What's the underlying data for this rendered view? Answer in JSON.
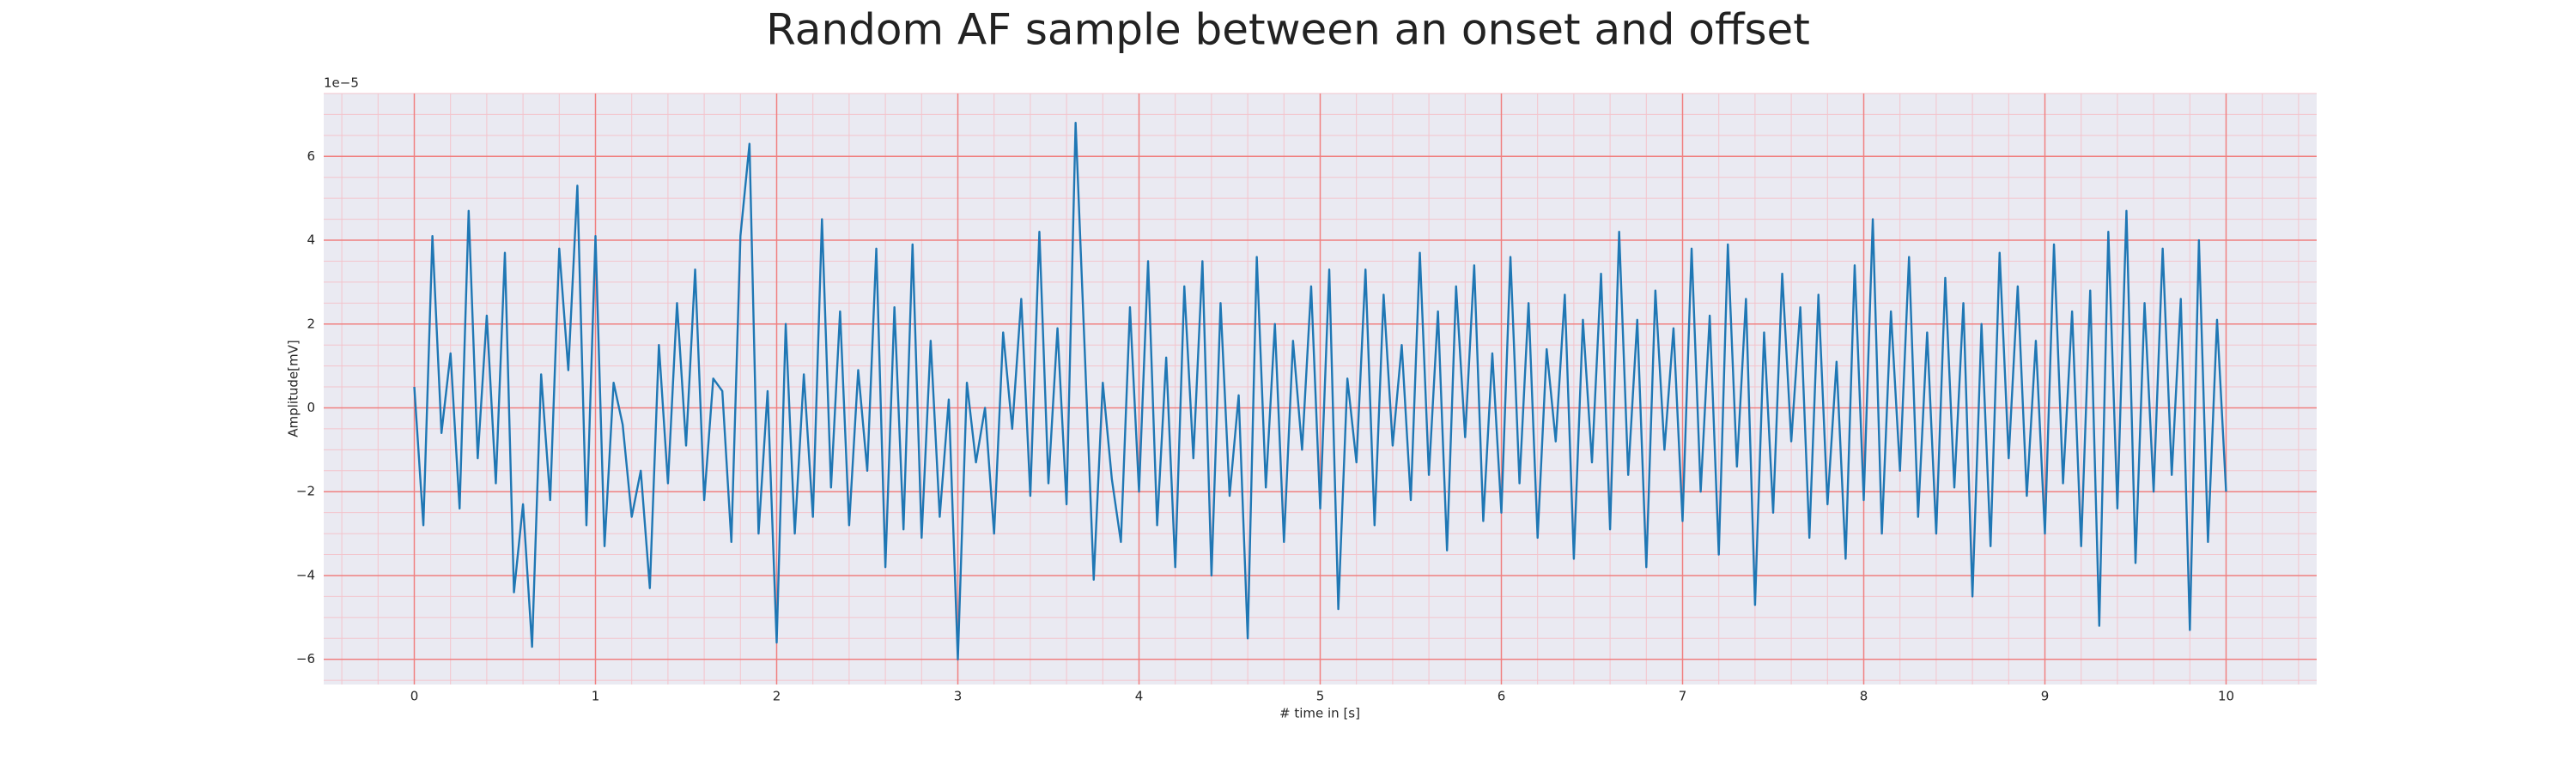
{
  "chart_data": {
    "type": "line",
    "title": "Random AF sample between an onset and offset",
    "xlabel": "# time in [s]",
    "ylabel": "Amplitude[mV]",
    "y_offset_label": "1e−5",
    "xlim": [
      -0.5,
      10.5
    ],
    "ylim": [
      -6.6,
      7.5
    ],
    "xticks": [
      0,
      1,
      2,
      3,
      4,
      5,
      6,
      7,
      8,
      9,
      10
    ],
    "yticks": [
      {
        "value": -6,
        "label": "−6"
      },
      {
        "value": -4,
        "label": "−4"
      },
      {
        "value": -2,
        "label": "−2"
      },
      0,
      2,
      4,
      6
    ],
    "grid": true,
    "grid_color": "#f08080",
    "minor_grid_color": "#f3c4cc",
    "x_minor_divisions": 5,
    "y_minor_divisions": 4,
    "background": "#eaeaf2",
    "series": [
      {
        "color": "#1f77b4",
        "x": [
          0,
          0.05,
          0.1,
          0.15,
          0.2,
          0.25,
          0.3,
          0.35,
          0.4,
          0.45,
          0.5,
          0.55,
          0.6,
          0.65,
          0.7,
          0.75,
          0.8,
          0.85,
          0.9,
          0.95,
          1,
          1.05,
          1.1,
          1.15,
          1.2,
          1.25,
          1.3,
          1.35,
          1.4,
          1.45,
          1.5,
          1.55,
          1.6,
          1.65,
          1.7,
          1.75,
          1.8,
          1.85,
          1.9,
          1.95,
          2,
          2.05,
          2.1,
          2.15,
          2.2,
          2.25,
          2.3,
          2.35,
          2.4,
          2.45,
          2.5,
          2.55,
          2.6,
          2.65,
          2.7,
          2.75,
          2.8,
          2.85,
          2.9,
          2.95,
          3,
          3.05,
          3.1,
          3.15,
          3.2,
          3.25,
          3.3,
          3.35,
          3.4,
          3.45,
          3.5,
          3.55,
          3.6,
          3.65,
          3.7,
          3.75,
          3.8,
          3.85,
          3.9,
          3.95,
          4,
          4.05,
          4.1,
          4.15,
          4.2,
          4.25,
          4.3,
          4.35,
          4.4,
          4.45,
          4.5,
          4.55,
          4.6,
          4.65,
          4.7,
          4.75,
          4.8,
          4.85,
          4.9,
          4.95,
          5,
          5.05,
          5.1,
          5.15,
          5.2,
          5.25,
          5.3,
          5.35,
          5.4,
          5.45,
          5.5,
          5.55,
          5.6,
          5.65,
          5.7,
          5.75,
          5.8,
          5.85,
          5.9,
          5.95,
          6,
          6.05,
          6.1,
          6.15,
          6.2,
          6.25,
          6.3,
          6.35,
          6.4,
          6.45,
          6.5,
          6.55,
          6.6,
          6.65,
          6.7,
          6.75,
          6.8,
          6.85,
          6.9,
          6.95,
          7,
          7.05,
          7.1,
          7.15,
          7.2,
          7.25,
          7.3,
          7.35,
          7.4,
          7.45,
          7.5,
          7.55,
          7.6,
          7.65,
          7.7,
          7.75,
          7.8,
          7.85,
          7.9,
          7.95,
          8,
          8.05,
          8.1,
          8.15,
          8.2,
          8.25,
          8.3,
          8.35,
          8.4,
          8.45,
          8.5,
          8.55,
          8.6,
          8.65,
          8.7,
          8.75,
          8.8,
          8.85,
          8.9,
          8.95,
          9,
          9.05,
          9.1,
          9.15,
          9.2,
          9.25,
          9.3,
          9.35,
          9.4,
          9.45,
          9.5,
          9.55,
          9.6,
          9.65,
          9.7,
          9.75,
          9.8,
          9.85,
          9.9,
          9.95,
          10
        ],
        "values": [
          0.5,
          -2.8,
          4.1,
          -0.6,
          1.3,
          -2.4,
          4.7,
          -1.2,
          2.2,
          -1.8,
          3.7,
          -4.4,
          -2.3,
          -5.7,
          0.8,
          -2.2,
          3.8,
          0.9,
          5.3,
          -2.8,
          4.1,
          -3.3,
          0.6,
          -0.4,
          -2.6,
          -1.5,
          -4.3,
          1.5,
          -1.8,
          2.5,
          -0.9,
          3.3,
          -2.2,
          0.7,
          0.4,
          -3.2,
          4.1,
          6.3,
          -3.0,
          0.4,
          -5.6,
          2.0,
          -3.0,
          0.8,
          -2.6,
          4.5,
          -1.9,
          2.3,
          -2.8,
          0.9,
          -1.5,
          3.8,
          -3.8,
          2.4,
          -2.9,
          3.9,
          -3.1,
          1.6,
          -2.6,
          0.2,
          -6.0,
          0.6,
          -1.3,
          0.0,
          -3.0,
          1.8,
          -0.5,
          2.6,
          -2.1,
          4.2,
          -1.8,
          1.9,
          -2.3,
          6.8,
          1.4,
          -4.1,
          0.6,
          -1.7,
          -3.2,
          2.4,
          -2.0,
          3.5,
          -2.8,
          1.2,
          -3.8,
          2.9,
          -1.2,
          3.5,
          -4.0,
          2.5,
          -2.1,
          0.3,
          -5.5,
          3.6,
          -1.9,
          2.0,
          -3.2,
          1.6,
          -1.0,
          2.9,
          -2.4,
          3.3,
          -4.8,
          0.7,
          -1.3,
          3.3,
          -2.8,
          2.7,
          -0.9,
          1.5,
          -2.2,
          3.7,
          -1.6,
          2.3,
          -3.4,
          2.9,
          -0.7,
          3.4,
          -2.7,
          1.3,
          -2.5,
          3.6,
          -1.8,
          2.5,
          -3.1,
          1.4,
          -0.8,
          2.7,
          -3.6,
          2.1,
          -1.3,
          3.2,
          -2.9,
          4.2,
          -1.6,
          2.1,
          -3.8,
          2.8,
          -1.0,
          1.9,
          -2.7,
          3.8,
          -2.0,
          2.2,
          -3.5,
          3.9,
          -1.4,
          2.6,
          -4.7,
          1.8,
          -2.5,
          3.2,
          -0.8,
          2.4,
          -3.1,
          2.7,
          -2.3,
          1.1,
          -3.6,
          3.4,
          -2.2,
          4.5,
          -3.0,
          2.3,
          -1.5,
          3.6,
          -2.6,
          1.8,
          -3.0,
          3.1,
          -1.9,
          2.5,
          -4.5,
          2.0,
          -3.3,
          3.7,
          -1.2,
          2.9,
          -2.1,
          1.6,
          -3.0,
          3.9,
          -1.8,
          2.3,
          -3.3,
          2.8,
          -5.2,
          4.2,
          -2.4,
          4.7,
          -3.7,
          2.5,
          -2.0,
          3.8,
          -1.6,
          2.6,
          -5.3,
          4.0,
          -3.2,
          2.1,
          -2.0
        ]
      }
    ]
  }
}
